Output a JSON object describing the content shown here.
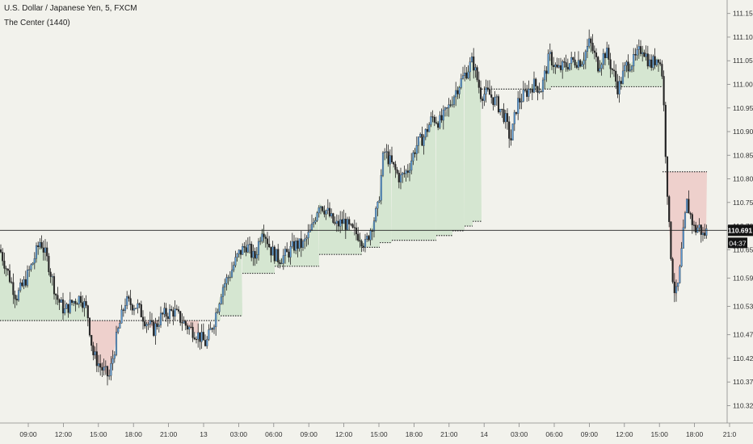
{
  "header": {
    "title": "U.S. Dollar / Japanese Yen, 5, FXCM",
    "indicator": "The Center (1440)"
  },
  "chart_data": {
    "type": "candlestick",
    "symbol": "USDJPY",
    "ylim": [
      110.29,
      111.17
    ],
    "y_ticks": [
      "111.150",
      "111.100",
      "111.050",
      "111.000",
      "110.950",
      "110.900",
      "110.850",
      "110.800",
      "110.750",
      "110.700",
      "110.650",
      "110.590",
      "110.530",
      "110.470",
      "110.420",
      "110.370",
      "110.320"
    ],
    "x_ticks": [
      "09:00",
      "12:00",
      "15:00",
      "18:00",
      "21:00",
      "13",
      "03:00",
      "06:00",
      "09:00",
      "12:00",
      "15:00",
      "18:00",
      "21:00",
      "14",
      "03:00",
      "06:00",
      "09:00",
      "12:00",
      "15:00",
      "18:00",
      "21:0"
    ],
    "current_price": "110.691",
    "countdown": "04:37",
    "price_path": [
      [
        0,
        110.65
      ],
      [
        10,
        110.6
      ],
      [
        20,
        110.55
      ],
      [
        30,
        110.58
      ],
      [
        40,
        110.62
      ],
      [
        50,
        110.67
      ],
      [
        60,
        110.62
      ],
      [
        70,
        110.55
      ],
      [
        80,
        110.52
      ],
      [
        90,
        110.54
      ],
      [
        100,
        110.55
      ],
      [
        108,
        110.52
      ],
      [
        115,
        110.43
      ],
      [
        125,
        110.4
      ],
      [
        135,
        110.38
      ],
      [
        145,
        110.47
      ],
      [
        155,
        110.54
      ],
      [
        170,
        110.53
      ],
      [
        180,
        110.5
      ],
      [
        190,
        110.48
      ],
      [
        200,
        110.51
      ],
      [
        215,
        110.52
      ],
      [
        230,
        110.49
      ],
      [
        245,
        110.47
      ],
      [
        255,
        110.45
      ],
      [
        265,
        110.5
      ],
      [
        275,
        110.57
      ],
      [
        285,
        110.6
      ],
      [
        295,
        110.64
      ],
      [
        305,
        110.66
      ],
      [
        315,
        110.63
      ],
      [
        325,
        110.7
      ],
      [
        335,
        110.65
      ],
      [
        345,
        110.63
      ],
      [
        355,
        110.64
      ],
      [
        365,
        110.66
      ],
      [
        375,
        110.66
      ],
      [
        385,
        110.69
      ],
      [
        395,
        110.75
      ],
      [
        405,
        110.73
      ],
      [
        415,
        110.7
      ],
      [
        425,
        110.71
      ],
      [
        435,
        110.69
      ],
      [
        445,
        110.68
      ],
      [
        452,
        110.66
      ],
      [
        460,
        110.7
      ],
      [
        468,
        110.74
      ],
      [
        475,
        110.86
      ],
      [
        485,
        110.83
      ],
      [
        495,
        110.8
      ],
      [
        505,
        110.82
      ],
      [
        515,
        110.87
      ],
      [
        525,
        110.89
      ],
      [
        535,
        110.93
      ],
      [
        545,
        110.92
      ],
      [
        555,
        110.95
      ],
      [
        565,
        110.99
      ],
      [
        575,
        111.02
      ],
      [
        585,
        111.05
      ],
      [
        595,
        110.98
      ],
      [
        605,
        110.98
      ],
      [
        615,
        110.96
      ],
      [
        625,
        110.93
      ],
      [
        632,
        110.88
      ],
      [
        640,
        110.96
      ],
      [
        650,
        110.98
      ],
      [
        660,
        111.0
      ],
      [
        670,
        110.99
      ],
      [
        680,
        111.06
      ],
      [
        690,
        111.03
      ],
      [
        700,
        111.04
      ],
      [
        710,
        111.05
      ],
      [
        720,
        111.05
      ],
      [
        730,
        111.09
      ],
      [
        740,
        111.04
      ],
      [
        750,
        111.07
      ],
      [
        760,
        111.02
      ],
      [
        765,
        110.99
      ],
      [
        775,
        111.04
      ],
      [
        785,
        111.05
      ],
      [
        795,
        111.08
      ],
      [
        805,
        111.04
      ],
      [
        815,
        111.06
      ],
      [
        820,
        111.02
      ],
      [
        824,
        110.85
      ],
      [
        828,
        110.7
      ],
      [
        832,
        110.6
      ],
      [
        836,
        110.55
      ],
      [
        840,
        110.58
      ],
      [
        845,
        110.67
      ],
      [
        850,
        110.75
      ],
      [
        855,
        110.72
      ],
      [
        860,
        110.69
      ],
      [
        865,
        110.7
      ],
      [
        870,
        110.68
      ],
      [
        875,
        110.69
      ]
    ],
    "center_levels": [
      {
        "x0": 0,
        "x1": 108,
        "y": 110.5,
        "fill": "green"
      },
      {
        "x0": 108,
        "x1": 246,
        "y": 110.5,
        "fill": "red"
      },
      {
        "x0": 246,
        "x1": 273,
        "y": 110.5,
        "fill": "green"
      },
      {
        "x0": 273,
        "x1": 300,
        "y": 110.51,
        "fill": "green"
      },
      {
        "x0": 300,
        "x1": 340,
        "y": 110.6,
        "fill": "green"
      },
      {
        "x0": 340,
        "x1": 395,
        "y": 110.615,
        "fill": "green"
      },
      {
        "x0": 395,
        "x1": 448,
        "y": 110.64,
        "fill": "green"
      },
      {
        "x0": 448,
        "x1": 470,
        "y": 110.655,
        "fill": "green"
      },
      {
        "x0": 470,
        "x1": 485,
        "y": 110.665,
        "fill": "green"
      },
      {
        "x0": 485,
        "x1": 540,
        "y": 110.67,
        "fill": "green"
      },
      {
        "x0": 540,
        "x1": 560,
        "y": 110.68,
        "fill": "green"
      },
      {
        "x0": 560,
        "x1": 575,
        "y": 110.69,
        "fill": "green"
      },
      {
        "x0": 575,
        "x1": 585,
        "y": 110.7,
        "fill": "green"
      },
      {
        "x0": 585,
        "x1": 596,
        "y": 110.71,
        "fill": "green"
      },
      {
        "x0": 596,
        "x1": 682,
        "y": 110.99,
        "fill": "green"
      },
      {
        "x0": 682,
        "x1": 820,
        "y": 110.995,
        "fill": "green"
      },
      {
        "x0": 820,
        "x1": 875,
        "y": 110.815,
        "fill": "red"
      }
    ],
    "colors": {
      "up": "#5b9bd5",
      "down": "#222222",
      "green_fill": "rgba(140,200,140,0.28)",
      "red_fill": "rgba(230,130,130,0.30)",
      "background": "#f2f2ec"
    }
  }
}
